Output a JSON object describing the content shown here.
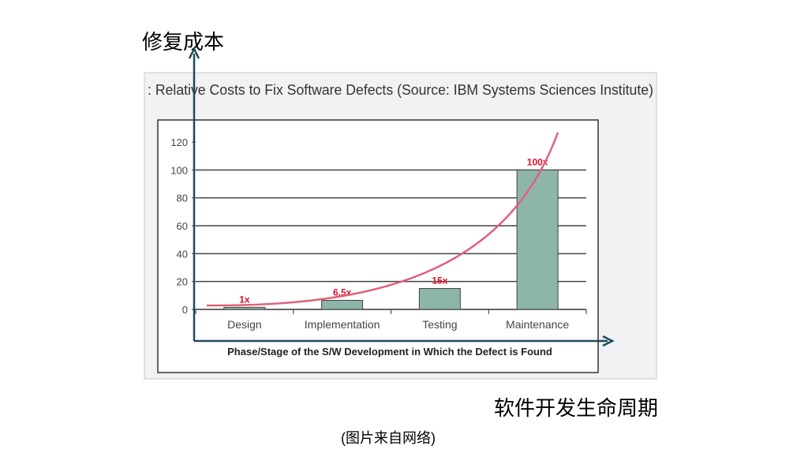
{
  "overlay": {
    "y_arrow_label": "修复成本",
    "x_arrow_label": "软件开发生命周期",
    "caption": "(图片来自网络)"
  },
  "chart_data": {
    "type": "bar",
    "title": ": Relative Costs to Fix Software Defects (Source: IBM Systems Sciences Institute)",
    "xlabel": "Phase/Stage of the S/W Development in Which the Defect is Found",
    "ylabel": "",
    "categories": [
      "Design",
      "Implementation",
      "Testing",
      "Maintenance"
    ],
    "values": [
      1,
      6.5,
      15,
      100
    ],
    "data_labels": [
      "1x",
      "6.5x",
      "15x",
      "100x"
    ],
    "ylim": [
      0,
      120
    ],
    "yticks": [
      "0",
      "20",
      "40",
      "60",
      "80",
      "100",
      "120"
    ],
    "grid": true,
    "colors": {
      "bar": "#8db5a9",
      "curve": "#e0607a",
      "label": "#e0102a",
      "arrow": "#1d4a5a"
    }
  }
}
